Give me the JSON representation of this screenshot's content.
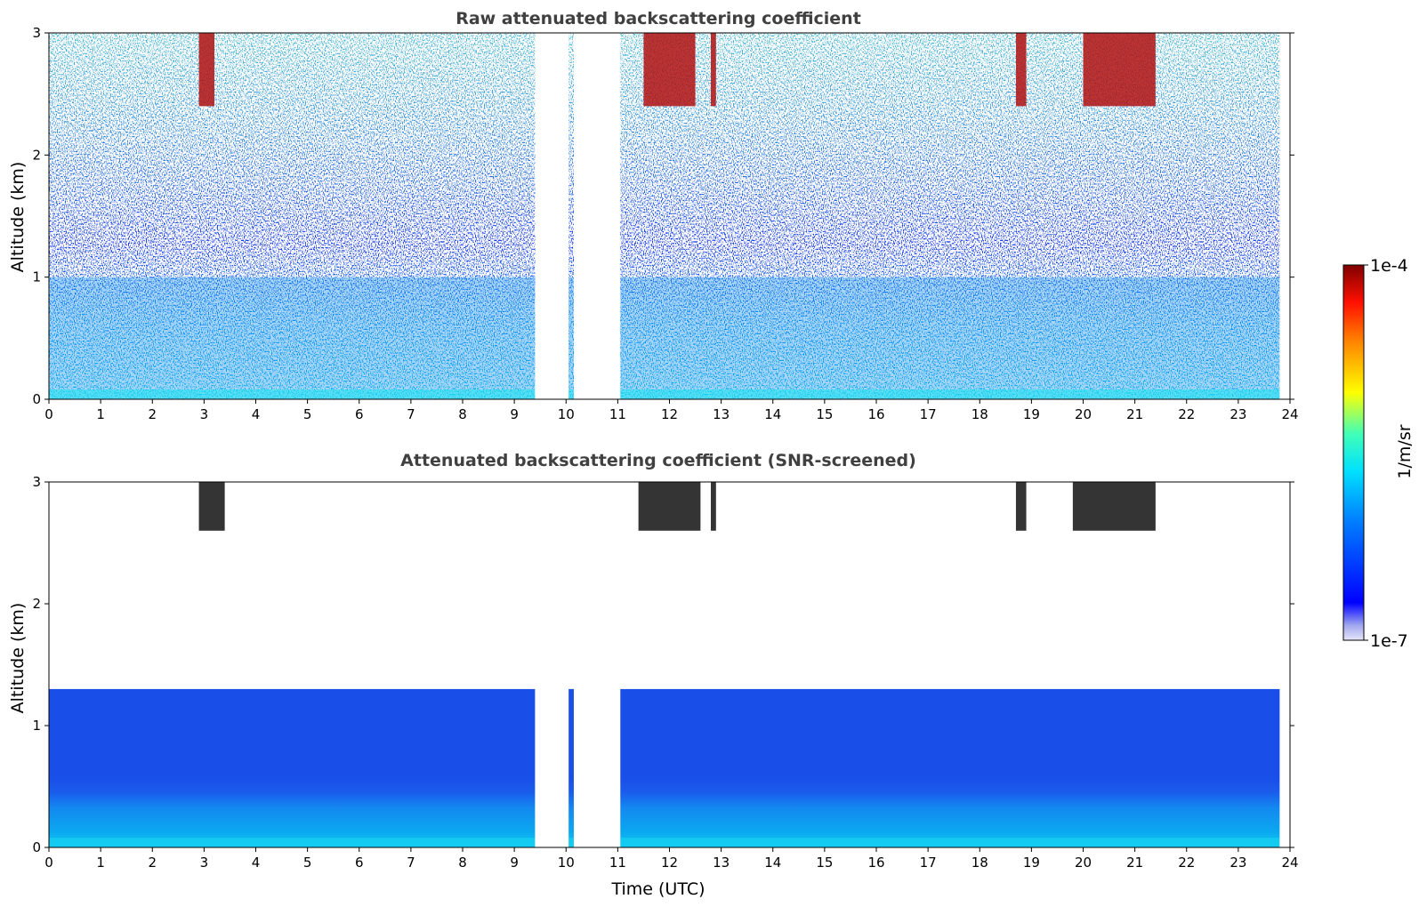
{
  "chart_data": [
    {
      "type": "heatmap",
      "title": "Raw attenuated backscattering coefficient",
      "xlabel": "",
      "ylabel": "Altitude (km)",
      "xlim": [
        0,
        24
      ],
      "ylim": [
        0,
        3
      ],
      "xticks": [
        "0",
        "1",
        "2",
        "3",
        "4",
        "5",
        "6",
        "7",
        "8",
        "9",
        "10",
        "11",
        "12",
        "13",
        "14",
        "15",
        "16",
        "17",
        "18",
        "19",
        "20",
        "21",
        "22",
        "23",
        "24"
      ],
      "yticks": [
        "0",
        "1",
        "2",
        "3"
      ],
      "data_gaps_utc": [
        [
          9.4,
          10.05
        ],
        [
          10.15,
          11.05
        ],
        [
          23.8,
          24
        ]
      ],
      "features": {
        "boundary_layer_top_km": 1.0,
        "cloud_events_utc": [
          [
            2.9,
            3.2
          ],
          [
            11.5,
            12.5
          ],
          [
            12.8,
            12.9
          ],
          [
            18.7,
            18.9
          ],
          [
            20.0,
            21.4
          ]
        ],
        "cloud_altitude_km": [
          2.4,
          3.0
        ]
      }
    },
    {
      "type": "heatmap",
      "title": "Attenuated backscattering coefficient (SNR-screened)",
      "xlabel": "Time (UTC)",
      "ylabel": "Altitude (km)",
      "xlim": [
        0,
        24
      ],
      "ylim": [
        0,
        3
      ],
      "xticks": [
        "0",
        "1",
        "2",
        "3",
        "4",
        "5",
        "6",
        "7",
        "8",
        "9",
        "10",
        "11",
        "12",
        "13",
        "14",
        "15",
        "16",
        "17",
        "18",
        "19",
        "20",
        "21",
        "22",
        "23",
        "24"
      ],
      "yticks": [
        "0",
        "1",
        "2",
        "3"
      ],
      "data_gaps_utc": [
        [
          9.4,
          10.05
        ],
        [
          10.15,
          11.05
        ],
        [
          23.8,
          24
        ]
      ],
      "features": {
        "screened_layer_top_km": 1.3,
        "cloud_events_utc": [
          [
            2.9,
            3.4
          ],
          [
            11.4,
            12.6
          ],
          [
            12.8,
            12.9
          ],
          [
            18.7,
            18.9
          ],
          [
            19.8,
            21.4
          ]
        ]
      }
    }
  ],
  "colorbar": {
    "label": "1/m/sr",
    "min_label": "1e-7",
    "max_label": "1e-4",
    "scale": "log",
    "colormap": "jet"
  }
}
